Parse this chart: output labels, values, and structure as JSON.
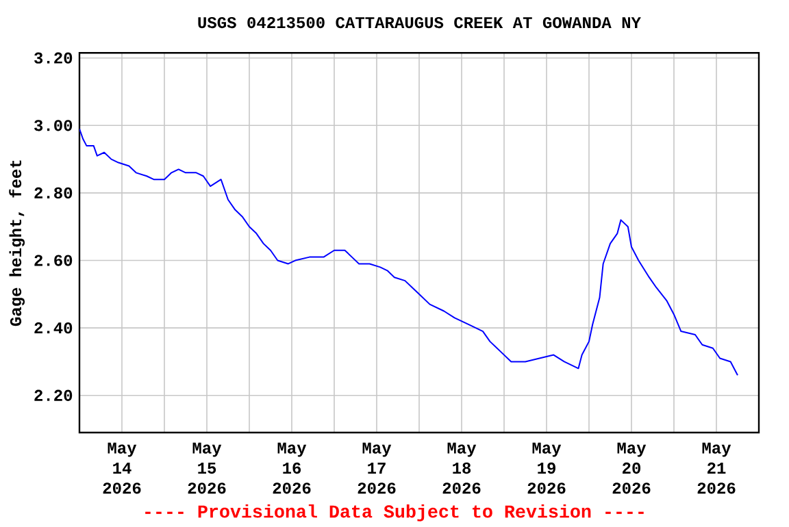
{
  "chart_data": {
    "type": "line",
    "title": "USGS 04213500 CATTARAUGUS CREEK AT GOWANDA NY",
    "ylabel": "Gage height, feet",
    "annotations": [
      "---- Provisional Data Subject to Revision ----"
    ],
    "xlim": [
      "2026-05-14T00:00",
      "2026-05-22T00:00"
    ],
    "xticks": [
      {
        "value": "2026-05-14T12:00",
        "label": "May 14 2026"
      },
      {
        "value": "2026-05-15T12:00",
        "label": "May 15 2026"
      },
      {
        "value": "2026-05-16T12:00",
        "label": "May 16 2026"
      },
      {
        "value": "2026-05-17T12:00",
        "label": "May 17 2026"
      },
      {
        "value": "2026-05-18T12:00",
        "label": "May 18 2026"
      },
      {
        "value": "2026-05-19T12:00",
        "label": "May 19 2026"
      },
      {
        "value": "2026-05-20T12:00",
        "label": "May 20 2026"
      },
      {
        "value": "2026-05-21T12:00",
        "label": "May 21 2026"
      },
      {
        "value": "2026-05-15T00:00",
        "label": null
      },
      {
        "value": "2026-05-16T00:00",
        "label": null
      },
      {
        "value": "2026-05-17T00:00",
        "label": null
      },
      {
        "value": "2026-05-18T00:00",
        "label": null
      },
      {
        "value": "2026-05-19T00:00",
        "label": null
      },
      {
        "value": "2026-05-20T00:00",
        "label": null
      },
      {
        "value": "2026-05-21T00:00",
        "label": null
      }
    ],
    "ylim": [
      2.09,
      3.215
    ],
    "yticks": [
      {
        "value": 2.2,
        "label": "2.20"
      },
      {
        "value": 2.4,
        "label": "2.40"
      },
      {
        "value": 2.6,
        "label": "2.60"
      },
      {
        "value": 2.8,
        "label": "2.80"
      },
      {
        "value": 3.0,
        "label": "3.00"
      },
      {
        "value": 3.2,
        "label": "3.20"
      }
    ],
    "grid": true,
    "x": [
      "2026-05-14T00:00",
      "2026-05-14T01:00",
      "2026-05-14T02:00",
      "2026-05-14T04:00",
      "2026-05-14T05:00",
      "2026-05-14T07:00",
      "2026-05-14T09:00",
      "2026-05-14T11:00",
      "2026-05-14T14:00",
      "2026-05-14T16:00",
      "2026-05-14T19:00",
      "2026-05-14T21:00",
      "2026-05-15T00:00",
      "2026-05-15T02:00",
      "2026-05-15T04:00",
      "2026-05-15T06:00",
      "2026-05-15T09:00",
      "2026-05-15T11:00",
      "2026-05-15T13:00",
      "2026-05-15T16:00",
      "2026-05-15T18:00",
      "2026-05-15T20:00",
      "2026-05-15T22:00",
      "2026-05-16T00:00",
      "2026-05-16T02:00",
      "2026-05-16T04:00",
      "2026-05-16T06:00",
      "2026-05-16T08:00",
      "2026-05-16T11:00",
      "2026-05-16T13:00",
      "2026-05-16T17:00",
      "2026-05-16T21:00",
      "2026-05-17T00:00",
      "2026-05-17T03:00",
      "2026-05-17T05:00",
      "2026-05-17T07:00",
      "2026-05-17T10:00",
      "2026-05-17T13:00",
      "2026-05-17T15:00",
      "2026-05-17T17:00",
      "2026-05-17T20:00",
      "2026-05-17T22:00",
      "2026-05-18T00:00",
      "2026-05-18T03:00",
      "2026-05-18T07:00",
      "2026-05-18T10:00",
      "2026-05-18T14:00",
      "2026-05-18T18:00",
      "2026-05-18T20:00",
      "2026-05-18T23:00",
      "2026-05-19T02:00",
      "2026-05-19T06:00",
      "2026-05-19T10:00",
      "2026-05-19T14:00",
      "2026-05-19T17:00",
      "2026-05-19T21:00",
      "2026-05-19T22:00",
      "2026-05-20T00:00",
      "2026-05-20T01:00",
      "2026-05-20T03:00",
      "2026-05-20T04:00",
      "2026-05-20T06:00",
      "2026-05-20T08:00",
      "2026-05-20T09:00",
      "2026-05-20T11:00",
      "2026-05-20T12:00",
      "2026-05-20T14:00",
      "2026-05-20T17:00",
      "2026-05-20T19:00",
      "2026-05-20T22:00",
      "2026-05-21T00:00",
      "2026-05-21T02:00",
      "2026-05-21T06:00",
      "2026-05-21T08:00",
      "2026-05-21T11:00",
      "2026-05-21T13:00",
      "2026-05-21T16:00",
      "2026-05-21T18:00"
    ],
    "series": [
      {
        "color": "#0000ff",
        "values": [
          2.99,
          2.96,
          2.94,
          2.94,
          2.91,
          2.92,
          2.9,
          2.89,
          2.88,
          2.86,
          2.85,
          2.84,
          2.84,
          2.86,
          2.87,
          2.86,
          2.86,
          2.85,
          2.82,
          2.84,
          2.78,
          2.75,
          2.73,
          2.7,
          2.68,
          2.65,
          2.63,
          2.6,
          2.59,
          2.6,
          2.61,
          2.61,
          2.63,
          2.63,
          2.61,
          2.59,
          2.59,
          2.58,
          2.57,
          2.55,
          2.54,
          2.52,
          2.5,
          2.47,
          2.45,
          2.43,
          2.41,
          2.39,
          2.36,
          2.33,
          2.3,
          2.3,
          2.31,
          2.32,
          2.3,
          2.28,
          2.32,
          2.36,
          2.41,
          2.49,
          2.59,
          2.65,
          2.68,
          2.72,
          2.7,
          2.64,
          2.6,
          2.55,
          2.52,
          2.48,
          2.44,
          2.39,
          2.38,
          2.35,
          2.34,
          2.31,
          2.3,
          2.26
        ]
      }
    ]
  }
}
